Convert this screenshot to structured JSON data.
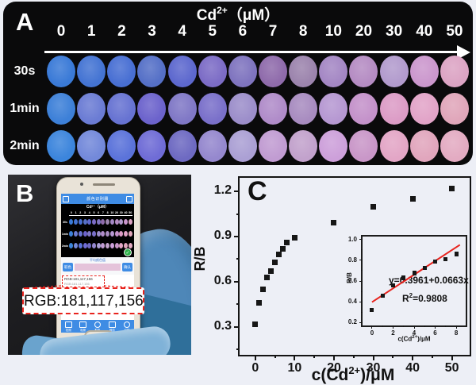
{
  "page": {
    "bg": "#edeff6"
  },
  "colors": {
    "panel_bg": "#0a0a0b",
    "accent_app_blue": "#3f8ce4",
    "callout_red": "#e8231d",
    "fit_line_red": "#e8231d",
    "glove_blue": "#4e87b8",
    "swatch_pink": "#e5c3da",
    "badge_green": "#2fb04a"
  },
  "panel_a": {
    "label": "A",
    "title": {
      "pre": "Cd",
      "sup": "2+",
      "post": "（μM）"
    },
    "concentrations": [
      "0",
      "1",
      "2",
      "3",
      "4",
      "5",
      "6",
      "7",
      "8",
      "10",
      "20",
      "30",
      "40",
      "50"
    ],
    "rows": [
      {
        "label": "30s",
        "colors": [
          "#3a7ad7",
          "#4474d3",
          "#486fd3",
          "#5570c7",
          "#5d68ce",
          "#7c6cc6",
          "#7f74bf",
          "#8f6bab",
          "#9c84ad",
          "#a487c4",
          "#b58cc3",
          "#b29bcd",
          "#cb97cd",
          "#dca4c4"
        ]
      },
      {
        "label": "1min",
        "colors": [
          "#3d80d8",
          "#6b7cd4",
          "#6773d2",
          "#6c63cc",
          "#8078c6",
          "#7a70ca",
          "#9c8eca",
          "#b08cc9",
          "#a88cc0",
          "#b698d2",
          "#c492ca",
          "#dc9cc6",
          "#e2a4c8",
          "#e0a6ba"
        ]
      },
      {
        "label": "2min",
        "colors": [
          "#3c85dc",
          "#7389da",
          "#5b73da",
          "#6f6cd6",
          "#6e6ac2",
          "#9588ce",
          "#aba0d4",
          "#c19cd2",
          "#c2a2cc",
          "#cda0da",
          "#c997c8",
          "#e3a6c6",
          "#e1a6bd",
          "#e3abc2"
        ]
      }
    ]
  },
  "panel_b": {
    "label": "B",
    "callout_text": "RGB:181,117,156",
    "phone": {
      "app_title": "颜色识别器",
      "mini_title": "Cd²⁺（μM）",
      "row_labels": [
        "30s",
        "1min",
        "2min"
      ],
      "badge_check": "✓",
      "left_button": "取色",
      "right_button": "确认",
      "swatch_label": "平均颜色值",
      "info_line": "RGB:181,117,156",
      "toolbar": [
        {
          "icon": "camera-icon",
          "label": "拍照"
        },
        {
          "icon": "album-icon",
          "label": "相册"
        },
        {
          "icon": "picker-icon",
          "label": "取色"
        },
        {
          "icon": "crop-icon",
          "label": "裁剪"
        },
        {
          "icon": "detect-icon",
          "label": "识别"
        }
      ]
    }
  },
  "panel_c": {
    "label": "C",
    "ylabel": "R/B",
    "xlabel": {
      "pre": "c(Cd",
      "sup": "2+",
      "post": ")/μM"
    },
    "inset": {
      "ylabel": "R/B",
      "xlabel": {
        "pre": "c(Cd",
        "sup": "2+",
        "post": ")/μM"
      },
      "equation": "y=0.3961+0.0663x",
      "r2": {
        "pre": "R",
        "sup": "2",
        "post": "=0.9808"
      }
    }
  },
  "chart_data": [
    {
      "id": "main",
      "type": "scatter",
      "title": "",
      "xlabel": "c(Cd2+)/μM",
      "ylabel": "R/B",
      "x": [
        0,
        1,
        2,
        3,
        4,
        5,
        6,
        7,
        8,
        10,
        20,
        30,
        40,
        50
      ],
      "y": [
        0.32,
        0.46,
        0.55,
        0.63,
        0.67,
        0.73,
        0.78,
        0.82,
        0.86,
        0.89,
        0.99,
        1.1,
        1.15,
        1.22
      ],
      "xlim": [
        -4,
        54.5
      ],
      "ylim": [
        0.115,
        1.29
      ],
      "xticks": [
        0,
        10,
        20,
        30,
        40,
        50
      ],
      "xminor": [
        5,
        15,
        25,
        35,
        45
      ],
      "yticks": [
        0.3,
        0.6,
        0.9,
        1.2
      ],
      "yminor": [
        0.15,
        0.45,
        0.75,
        1.05
      ],
      "grid": false,
      "legend": "none",
      "point_color": "#161616"
    },
    {
      "id": "inset",
      "type": "scatter",
      "title": "",
      "xlabel": "c(Cd2+)/μM",
      "ylabel": "R/B",
      "x": [
        0,
        1,
        2,
        3,
        4,
        5,
        6,
        7,
        8
      ],
      "y": [
        0.32,
        0.46,
        0.555,
        0.63,
        0.675,
        0.73,
        0.785,
        0.815,
        0.862
      ],
      "yerr": [
        0.015,
        0.01,
        0.012,
        0.018,
        0.018,
        0.012,
        0.01,
        0.012,
        0.022
      ],
      "fit": {
        "intercept": 0.3961,
        "slope": 0.0663,
        "x_start": 0,
        "x_end": 8.35,
        "color": "#e8231d"
      },
      "equation": "y=0.3961+0.0663x",
      "r_squared": 0.9808,
      "xlim": [
        -0.9,
        8.9
      ],
      "ylim": [
        0.17,
        1.03
      ],
      "xticks": [
        0,
        2,
        4,
        6,
        8
      ],
      "xminor": [
        1,
        3,
        5,
        7
      ],
      "yticks": [
        0.2,
        0.4,
        0.6,
        0.8,
        1.0
      ],
      "yminor": [
        0.3,
        0.5,
        0.7,
        0.9
      ],
      "grid": false,
      "legend": "none",
      "point_color": "#161616"
    }
  ]
}
